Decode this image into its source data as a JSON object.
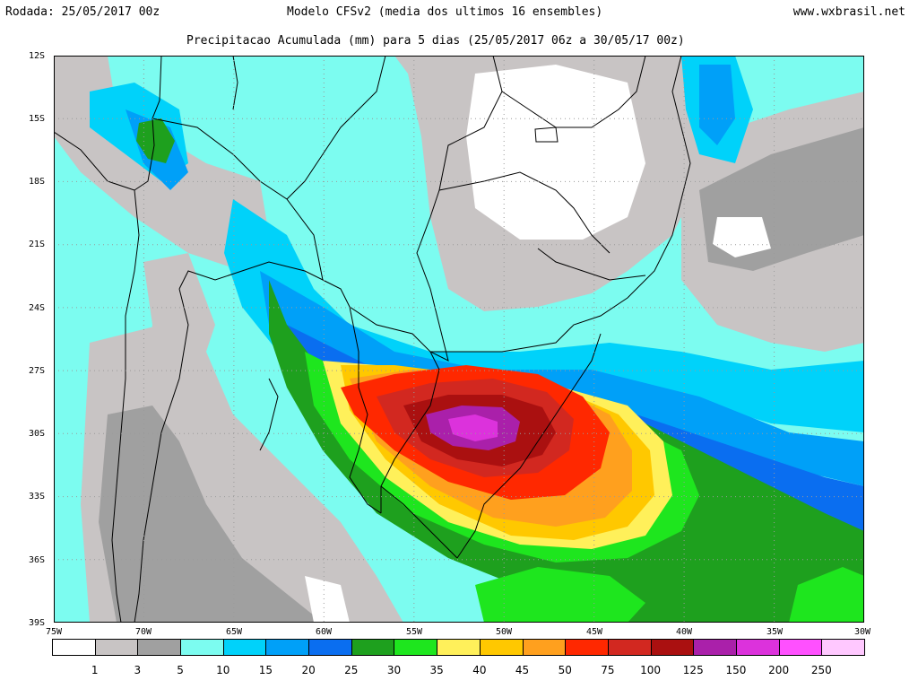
{
  "header": {
    "run_date": "Rodada: 25/05/2017 00z",
    "model": "Modelo CFSv2 (media dos ultimos 16 ensembles)",
    "site": "www.wxbrasil.net",
    "subtitle": "Precipitacao Acumulada (mm) para 5 dias (25/05/2017 06z a 30/05/17 00z)"
  },
  "map": {
    "lat_labels": [
      "12S",
      "15S",
      "18S",
      "21S",
      "24S",
      "27S",
      "30S",
      "33S",
      "36S",
      "39S"
    ],
    "lon_labels": [
      "75W",
      "70W",
      "65W",
      "60W",
      "55W",
      "50W",
      "45W",
      "40W",
      "35W",
      "30W"
    ],
    "lat_range": [
      -39,
      -12
    ],
    "lon_range": [
      -75,
      -30
    ]
  },
  "legend": {
    "colors": [
      "#ffffff",
      "#c8c4c4",
      "#a0a0a0",
      "#7cfcf0",
      "#00d2fa",
      "#00a0f8",
      "#0a6ef0",
      "#1ea01e",
      "#1ee61e",
      "#fff05a",
      "#ffc800",
      "#ffa01e",
      "#ff2800",
      "#d22820",
      "#aa1010",
      "#aa20aa",
      "#dc32dc",
      "#ff50ff",
      "#ffc8ff"
    ],
    "labels": [
      "1",
      "3",
      "5",
      "10",
      "15",
      "20",
      "25",
      "30",
      "35",
      "40",
      "45",
      "50",
      "75",
      "100",
      "125",
      "150",
      "200",
      "250"
    ]
  }
}
